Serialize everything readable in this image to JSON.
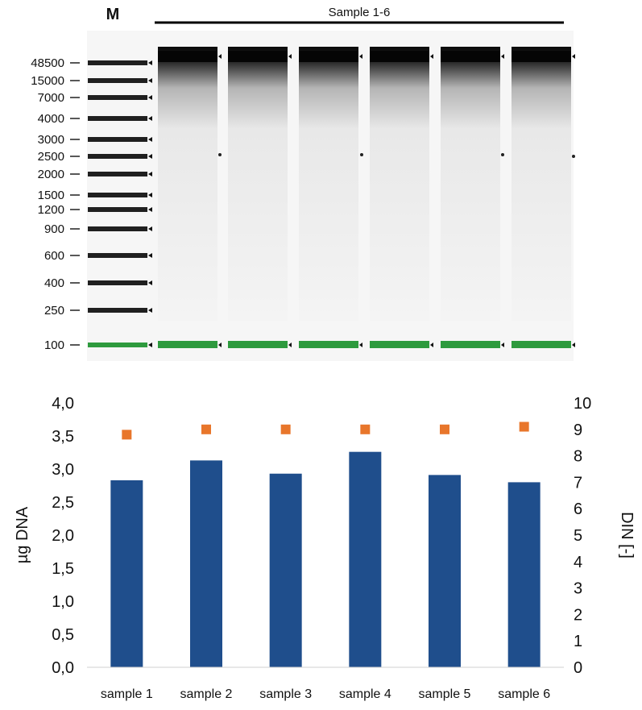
{
  "gel": {
    "marker_label": "M",
    "sample_group_label": "Sample 1-6",
    "ladder_bands": [
      "48500",
      "15000",
      "7000",
      "4000",
      "3000",
      "2500",
      "2000",
      "1500",
      "1200",
      "900",
      "600",
      "400",
      "250",
      "100"
    ],
    "band_colors": {
      "lower_marker": "#2e9a3e",
      "background": "#f6f6f6",
      "band": "#111111"
    }
  },
  "chart_data": {
    "type": "bar",
    "categories": [
      "sample 1",
      "sample 2",
      "sample 3",
      "sample 4",
      "sample 5",
      "sample 6"
    ],
    "series": [
      {
        "name": "",
        "axis": "left",
        "kind": "bar",
        "color": "#1f4e8c",
        "values": [
          2.83,
          3.13,
          2.93,
          3.26,
          2.91,
          2.8
        ]
      },
      {
        "name": "",
        "axis": "right",
        "kind": "scatter",
        "marker": "square",
        "color": "#e8762b",
        "values": [
          8.8,
          9.0,
          9.0,
          9.0,
          9.0,
          9.1
        ]
      }
    ],
    "ylabel": "µg DNA",
    "ylabel_right": "DIN [-]",
    "ylim": [
      0,
      4
    ],
    "ylim_right": [
      0,
      10
    ],
    "yticks": [
      "0,0",
      "0,5",
      "1,0",
      "1,5",
      "2,0",
      "2,5",
      "3,0",
      "3,5",
      "4,0"
    ],
    "yticks_right": [
      "0",
      "1",
      "2",
      "3",
      "4",
      "5",
      "6",
      "7",
      "8",
      "9",
      "10"
    ],
    "grid": false,
    "legend": "none"
  }
}
